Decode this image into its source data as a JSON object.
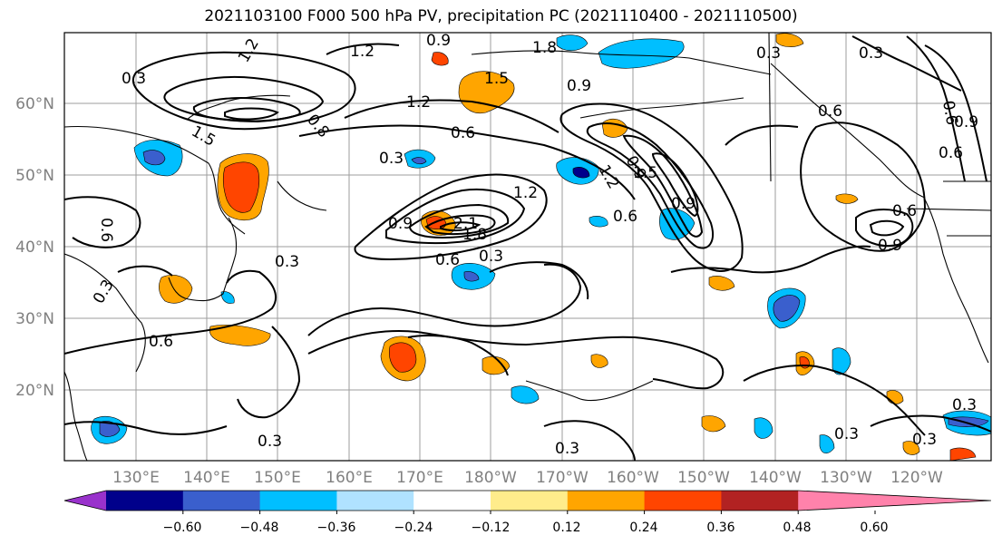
{
  "title": "2021103100 F000 500 hPa PV, precipitation PC (2021110400 - 2021110500)",
  "map": {
    "lat_labels": [
      "60°N",
      "50°N",
      "40°N",
      "30°N",
      "20°N"
    ],
    "lon_labels": [
      "130°E",
      "140°E",
      "150°E",
      "160°E",
      "170°E",
      "180°W",
      "170°W",
      "160°W",
      "150°W",
      "140°W",
      "130°W",
      "120°W"
    ],
    "gridlines": true,
    "coastline_color": "#000000"
  },
  "contour_labels": [
    "0.3",
    "1.2",
    "0.9",
    "1.5",
    "1.8",
    "0.3",
    "0.9",
    "1.2",
    "0.6",
    "0.3",
    "0.6",
    "1.5",
    "0.9",
    "0.3",
    "0.6",
    "0.9",
    "0.6",
    "0.3",
    "0.9",
    "1.2",
    "0.6",
    "0.3",
    "2.1",
    "1.8",
    "0.6",
    "0.3",
    "0.6",
    "0.3",
    "0.3",
    "0.3",
    "0.3",
    "0.9",
    "0.6",
    "0.9",
    "1.2",
    "0.6",
    "0.3",
    "1.5",
    "1.2",
    "0.8"
  ],
  "colorbar": {
    "colors": [
      "#9932cc",
      "#00008b",
      "#3a5fcd",
      "#00bfff",
      "#b0e2ff",
      "#ffffff",
      "#ffec8b",
      "#ffa500",
      "#ff4500",
      "#b22222",
      "#ff82ab"
    ],
    "tick_labels": [
      "−0.60",
      "−0.48",
      "−0.36",
      "−0.24",
      "−0.12",
      "0.12",
      "0.24",
      "0.36",
      "0.48",
      "0.60"
    ]
  }
}
